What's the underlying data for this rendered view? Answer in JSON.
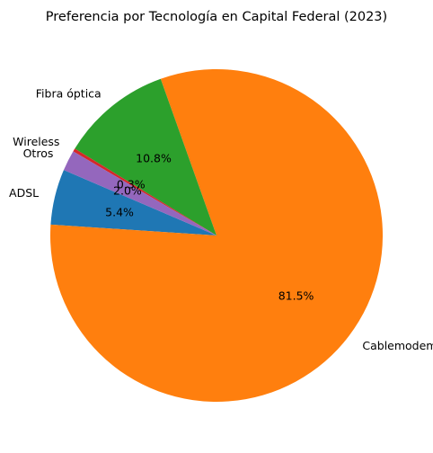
{
  "chart_data": {
    "type": "pie",
    "title": "Preferencia por Tecnología en Capital Federal (2023)",
    "start_angle_deg": 156.8,
    "direction": "counterclockwise",
    "slices": [
      {
        "label": "ADSL",
        "value": 5.4,
        "pct_label": "5.4%",
        "color": "#1f77b4"
      },
      {
        "label": "Cablemodem",
        "value": 81.5,
        "pct_label": "81.5%",
        "color": "#ff7f0e"
      },
      {
        "label": "Fibra óptica",
        "value": 10.8,
        "pct_label": "10.8%",
        "color": "#2ca02c"
      },
      {
        "label": "Wireless",
        "value": 0.3,
        "pct_label": "0.3%",
        "color": "#d62728"
      },
      {
        "label": "Otros",
        "value": 2.0,
        "pct_label": "2.0%",
        "color": "#9467bd"
      }
    ]
  }
}
